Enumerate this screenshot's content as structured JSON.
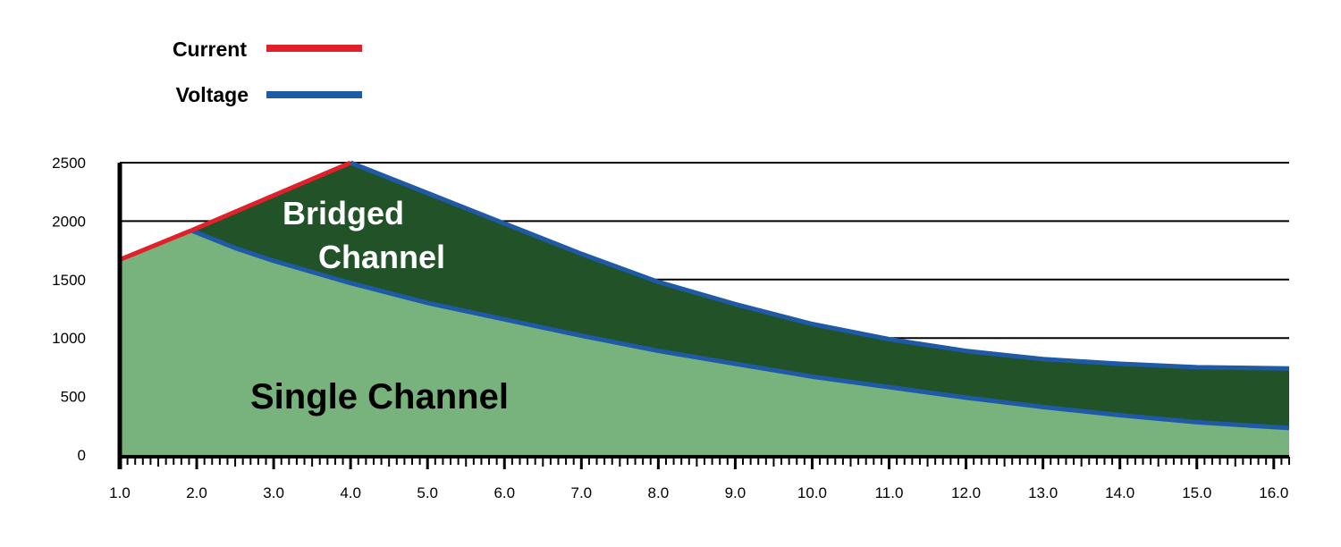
{
  "chart_data": {
    "type": "area",
    "x_ticks": [
      "1.0",
      "2.0",
      "3.0",
      "4.0",
      "5.0",
      "6.0",
      "7.0",
      "8.0",
      "9.0",
      "10.0",
      "11.0",
      "12.0",
      "13.0",
      "14.0",
      "15.0",
      "16.0"
    ],
    "y_ticks": [
      "0",
      "500",
      "1000",
      "1500",
      "2000",
      "2500"
    ],
    "xlim": [
      1.0,
      16.2
    ],
    "ylim": [
      0,
      2500
    ],
    "grid": true,
    "legend": {
      "placement": "top-left",
      "items": [
        {
          "label": "Current",
          "color": "#e0202a"
        },
        {
          "label": "Voltage",
          "color": "#1f5aa6"
        }
      ]
    },
    "series": [
      {
        "name": "Single Channel",
        "fill": "#78b27c",
        "current_points": [
          [
            1.0,
            1670
          ],
          [
            1.93,
            1920
          ]
        ],
        "voltage_points": [
          [
            1.93,
            1920
          ],
          [
            2.5,
            1770
          ],
          [
            3.0,
            1660
          ],
          [
            4.0,
            1470
          ],
          [
            5.0,
            1300
          ],
          [
            6.0,
            1160
          ],
          [
            7.0,
            1020
          ],
          [
            8.0,
            890
          ],
          [
            9.0,
            780
          ],
          [
            10.0,
            670
          ],
          [
            11.0,
            580
          ],
          [
            12.0,
            490
          ],
          [
            13.0,
            410
          ],
          [
            14.0,
            340
          ],
          [
            15.0,
            280
          ],
          [
            16.2,
            230
          ]
        ]
      },
      {
        "name": "Bridged Channel",
        "fill": "#225228",
        "current_points": [
          [
            1.93,
            1920
          ],
          [
            4.0,
            2500
          ]
        ],
        "voltage_points": [
          [
            4.0,
            2500
          ],
          [
            5.0,
            2240
          ],
          [
            6.0,
            1980
          ],
          [
            7.0,
            1720
          ],
          [
            8.0,
            1480
          ],
          [
            9.0,
            1290
          ],
          [
            10.0,
            1120
          ],
          [
            11.0,
            990
          ],
          [
            12.0,
            890
          ],
          [
            13.0,
            820
          ],
          [
            14.0,
            780
          ],
          [
            15.0,
            750
          ],
          [
            16.2,
            740
          ]
        ]
      }
    ],
    "annotations": [
      "Bridged",
      "Channel",
      "Single Channel"
    ]
  }
}
